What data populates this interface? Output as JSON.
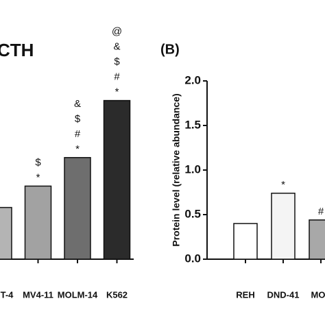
{
  "chart_data": [
    {
      "type": "bar",
      "title": "CTH",
      "categories": [
        "T-4",
        "MV4-11",
        "MOLM-14",
        "K562"
      ],
      "values": [
        0.58,
        0.82,
        1.14,
        1.78
      ],
      "colors": [
        "#b4b4b4",
        "#a2a2a2",
        "#6e6e6e",
        "#2b2b2b"
      ],
      "annotations": [
        [],
        [
          "$",
          "*"
        ],
        [
          "&",
          "$",
          "#",
          "*"
        ],
        [
          "@",
          "&",
          "$",
          "#",
          "*"
        ]
      ],
      "ylim": [
        0,
        2
      ]
    },
    {
      "type": "bar",
      "title": "(B)",
      "ylabel": "Protein level (relative abundance)",
      "categories": [
        "REH",
        "DND-41",
        "MOL"
      ],
      "values": [
        0.4,
        0.74,
        0.44
      ],
      "colors": [
        "#ffffff",
        "#f4f4f4",
        "#a8a8a8"
      ],
      "annotations": [
        [],
        [
          "*"
        ],
        [
          "#"
        ]
      ],
      "ylim": [
        0,
        2.0
      ],
      "yticks": [
        {
          "value": 0,
          "label": "0.0"
        },
        {
          "value": 0.5,
          "label": "0.5"
        },
        {
          "value": 1.0,
          "label": "1.0"
        },
        {
          "value": 1.5,
          "label": "1.5"
        },
        {
          "value": 2.0,
          "label": "2.0"
        }
      ]
    }
  ]
}
